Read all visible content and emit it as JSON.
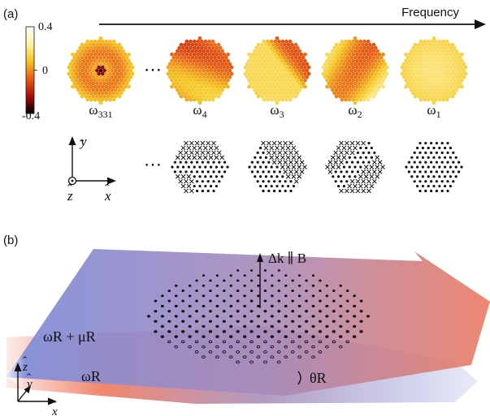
{
  "panel_a": {
    "label": "(a)",
    "frequency_label": "Frequency",
    "colorbar": {
      "max_label": "0.4",
      "mid_label": "0",
      "min_label": "-0.4",
      "stops": [
        "#000000",
        "#b00a0a",
        "#e85a14",
        "#f7c51c",
        "#fff4a6",
        "#ffffff"
      ]
    },
    "ellipsis": "⋯",
    "modes": [
      {
        "name": "ω331",
        "base": "ω",
        "sub": "331"
      },
      {
        "name": "ω4",
        "base": "ω",
        "sub": "4"
      },
      {
        "name": "ω3",
        "base": "ω",
        "sub": "3"
      },
      {
        "name": "ω2",
        "base": "ω",
        "sub": "2"
      },
      {
        "name": "ω1",
        "base": "ω",
        "sub": "1"
      }
    ],
    "axes": {
      "x": "x",
      "y": "y",
      "z": "z"
    }
  },
  "panel_b": {
    "label": "(b)",
    "vector_label": "Δk ∥ B",
    "upper_beam_label": "ωR + μR",
    "lower_beam_label": "ωR",
    "angle_label": "θR",
    "colors": {
      "blue": "#6b7fd0",
      "red": "#e9765e"
    },
    "axes": {
      "x": "x",
      "y": "y",
      "z": "z"
    }
  }
}
